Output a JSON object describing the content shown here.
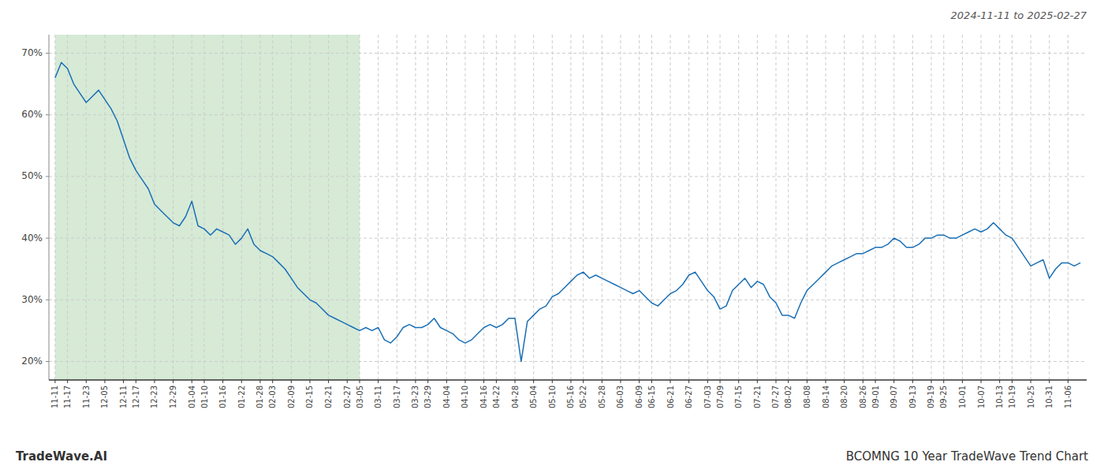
{
  "chart_data": {
    "type": "line",
    "title": "2024-11-11 to 2025-02-27",
    "annotations": [
      "TradeWave.AI",
      "BCOMNG 10 Year TradeWave Trend Chart"
    ],
    "color": "#1a6fb5",
    "grid": true,
    "ylim": [
      17,
      73
    ],
    "yticks": [
      {
        "value": 20,
        "label": "20%"
      },
      {
        "value": 30,
        "label": "30%"
      },
      {
        "value": 40,
        "label": "40%"
      },
      {
        "value": 50,
        "label": "50%"
      },
      {
        "value": 60,
        "label": "60%"
      },
      {
        "value": 70,
        "label": "70%"
      }
    ],
    "highlight": {
      "from": "11-11",
      "to": "03-05",
      "color": "#d6ead6"
    },
    "categories": [
      "11-11",
      null,
      "11-17",
      null,
      null,
      "11-23",
      null,
      null,
      "12-05",
      null,
      null,
      "12-11",
      null,
      "12-17",
      null,
      null,
      "12-23",
      null,
      null,
      "12-29",
      null,
      null,
      "01-04",
      null,
      "01-10",
      null,
      null,
      "01-16",
      null,
      null,
      "01-22",
      null,
      null,
      "01-28",
      null,
      "02-03",
      null,
      null,
      "02-09",
      null,
      null,
      "02-15",
      null,
      null,
      "02-21",
      null,
      null,
      "02-27",
      null,
      "03-05",
      null,
      null,
      "03-11",
      null,
      null,
      "03-17",
      null,
      null,
      "03-23",
      null,
      "03-29",
      null,
      null,
      "04-04",
      null,
      null,
      "04-10",
      null,
      null,
      "04-16",
      null,
      "04-22",
      null,
      null,
      "04-28",
      null,
      null,
      "05-04",
      null,
      null,
      "05-10",
      null,
      null,
      "05-16",
      null,
      "05-22",
      null,
      null,
      "05-28",
      null,
      null,
      "06-03",
      null,
      null,
      "06-09",
      null,
      "06-15",
      null,
      null,
      "06-21",
      null,
      null,
      "06-27",
      null,
      null,
      "07-03",
      null,
      "07-09",
      null,
      null,
      "07-15",
      null,
      null,
      "07-21",
      null,
      null,
      "07-27",
      null,
      "08-02",
      null,
      null,
      "08-08",
      null,
      null,
      "08-14",
      null,
      null,
      "08-20",
      null,
      null,
      "08-26",
      null,
      "09-01",
      null,
      null,
      "09-07",
      null,
      null,
      "09-13",
      null,
      null,
      "09-19",
      null,
      "09-25",
      null,
      null,
      "10-01",
      null,
      null,
      "10-07",
      null,
      null,
      "10-13",
      null,
      "10-19",
      null,
      null,
      "10-25",
      null,
      null,
      "10-31",
      null,
      null,
      "11-06",
      null,
      null
    ],
    "values": [
      66.0,
      68.5,
      67.5,
      65.0,
      63.5,
      62.0,
      63.0,
      64.0,
      62.5,
      61.0,
      59.0,
      56.0,
      53.0,
      51.0,
      49.5,
      48.0,
      45.5,
      44.5,
      43.5,
      42.5,
      42.0,
      43.5,
      46.0,
      42.0,
      41.5,
      40.5,
      41.5,
      41.0,
      40.5,
      39.0,
      40.0,
      41.5,
      39.0,
      38.0,
      37.5,
      37.0,
      36.0,
      35.0,
      33.5,
      32.0,
      31.0,
      30.0,
      29.5,
      28.5,
      27.5,
      27.0,
      26.5,
      26.0,
      25.5,
      25.0,
      25.5,
      25.0,
      25.5,
      23.5,
      23.0,
      24.0,
      25.5,
      26.0,
      25.5,
      25.5,
      26.0,
      27.0,
      25.5,
      25.0,
      24.5,
      23.5,
      23.0,
      23.5,
      24.5,
      25.5,
      26.0,
      25.5,
      26.0,
      27.0,
      27.0,
      20.0,
      26.5,
      27.5,
      28.5,
      29.0,
      30.5,
      31.0,
      32.0,
      33.0,
      34.0,
      34.5,
      33.5,
      34.0,
      33.5,
      33.0,
      32.5,
      32.0,
      31.5,
      31.0,
      31.5,
      30.5,
      29.5,
      29.0,
      30.0,
      31.0,
      31.5,
      32.5,
      34.0,
      34.5,
      33.0,
      31.5,
      30.5,
      28.5,
      29.0,
      31.5,
      32.5,
      33.5,
      32.0,
      33.0,
      32.5,
      30.5,
      29.5,
      27.5,
      27.5,
      27.0,
      29.5,
      31.5,
      32.5,
      33.5,
      34.5,
      35.5,
      36.0,
      36.5,
      37.0,
      37.5,
      37.5,
      38.0,
      38.5,
      38.5,
      39.0,
      40.0,
      39.5,
      38.5,
      38.5,
      39.0,
      40.0,
      40.0,
      40.5,
      40.5,
      40.0,
      40.0,
      40.5,
      41.0,
      41.5,
      41.0,
      41.5,
      42.5,
      41.5,
      40.5,
      40.0,
      38.5,
      37.0,
      35.5,
      36.0,
      36.5,
      33.5,
      35.0,
      36.0,
      36.0,
      35.5,
      36.0
    ]
  }
}
